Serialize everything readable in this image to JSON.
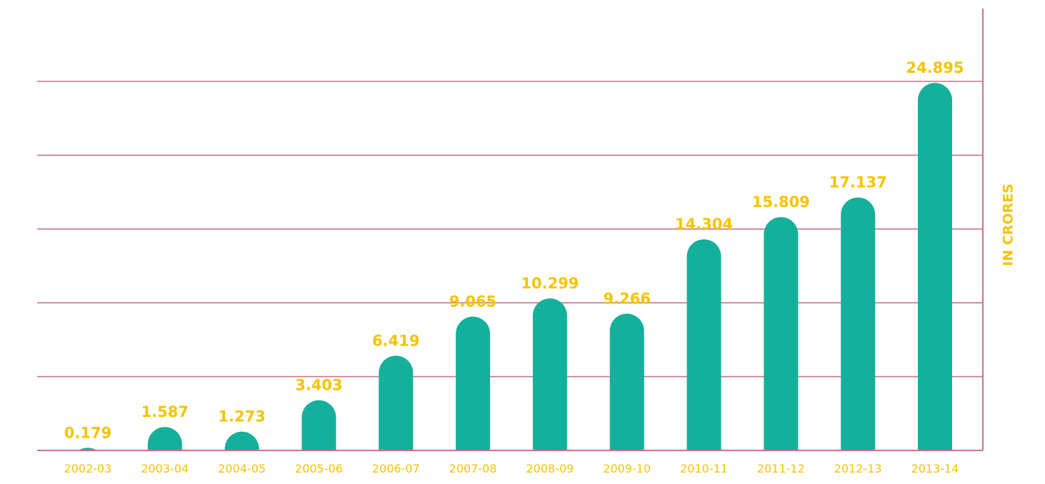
{
  "chart_data": {
    "type": "bar",
    "categories": [
      "2002-03",
      "2003-04",
      "2004-05",
      "2005-06",
      "2006-07",
      "2007-08",
      "2008-09",
      "2009-10",
      "2010-11",
      "2011-12",
      "2012-13",
      "2013-14"
    ],
    "values": [
      0.179,
      1.587,
      1.273,
      3.403,
      6.419,
      9.065,
      10.299,
      9.266,
      14.304,
      15.809,
      17.137,
      24.895
    ],
    "value_labels": [
      "0.179",
      "1.587",
      "1.273",
      "3.403",
      "6.419",
      "9.065",
      "10.299",
      "9.266",
      "14.304",
      "15.809",
      "17.137",
      "24.895"
    ],
    "title": "",
    "xlabel": "",
    "ylabel": "IN CRORES",
    "ylim": [
      0,
      30
    ],
    "y_axis_position": "right",
    "grid": true,
    "legend": "none",
    "colors": {
      "bar": "#15b09b",
      "text": "#f5c400",
      "grid": "#c9748a"
    }
  }
}
